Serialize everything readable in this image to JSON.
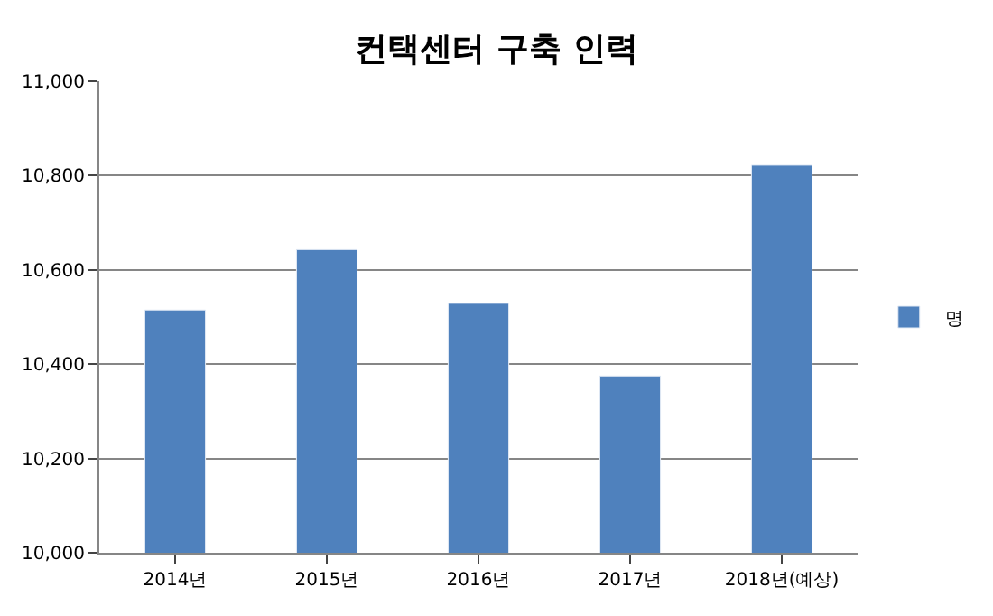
{
  "chart_data": {
    "type": "bar",
    "title": "컨택센터 구축 인력",
    "categories": [
      "2014년",
      "2015년",
      "2016년",
      "2017년",
      "2018년(예상)"
    ],
    "series": [
      {
        "name": "명",
        "color": "#4f81bd",
        "values": [
          10515,
          10643,
          10529,
          10375,
          10822
        ]
      }
    ],
    "ylim": [
      10000,
      11000
    ],
    "yticks": [
      {
        "value": 10000,
        "label": "10,000"
      },
      {
        "value": 10200,
        "label": "10,200"
      },
      {
        "value": 10400,
        "label": "10,400"
      },
      {
        "value": 10600,
        "label": "10,600"
      },
      {
        "value": 10800,
        "label": "10,800"
      },
      {
        "value": 11000,
        "label": "11,000"
      }
    ],
    "grid": "y",
    "legend": "right"
  }
}
